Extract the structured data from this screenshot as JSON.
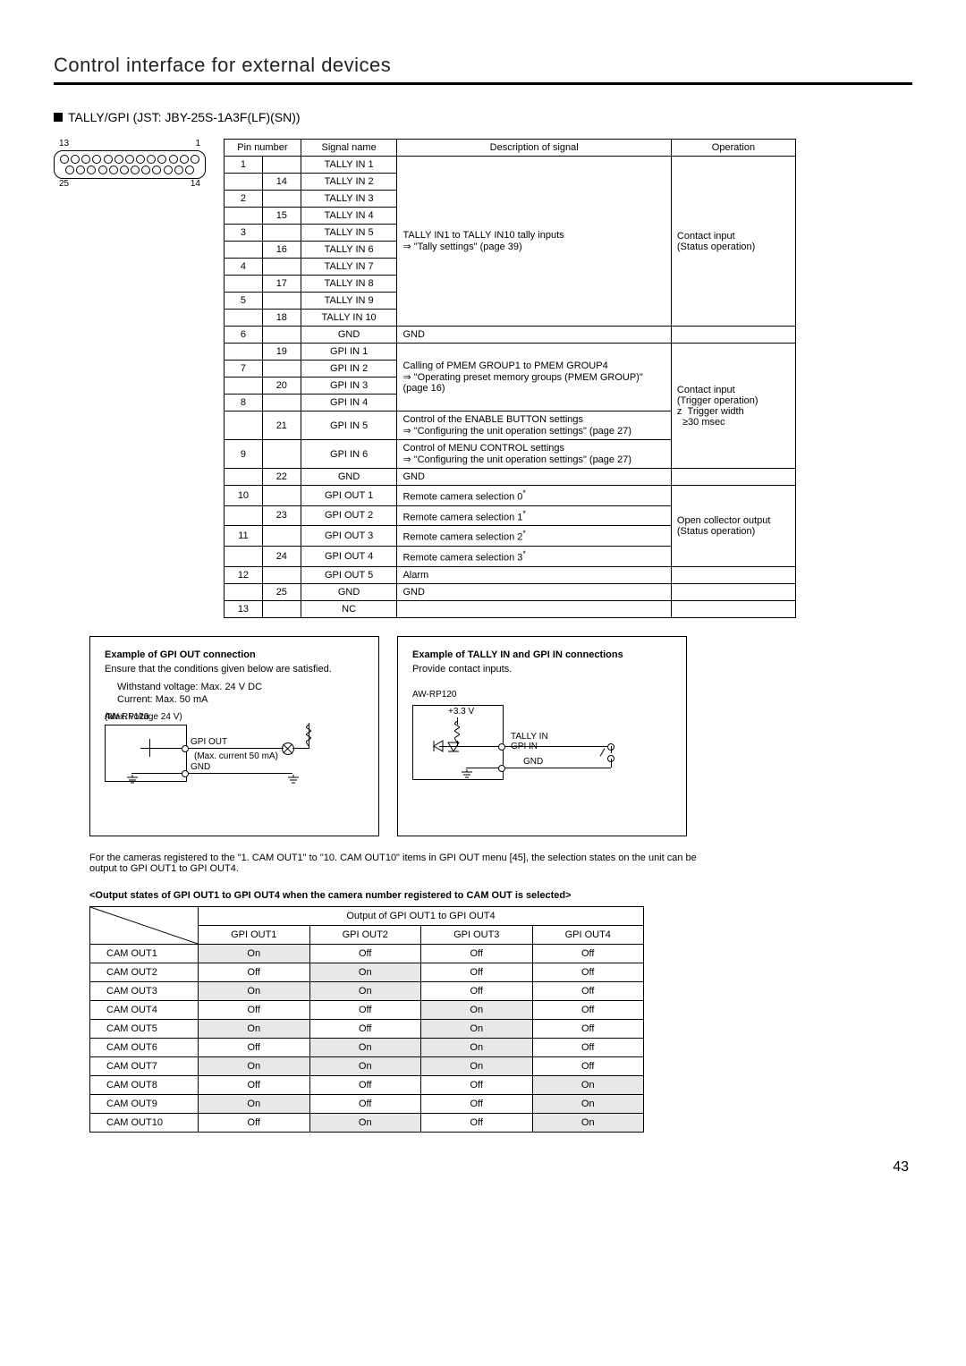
{
  "page": {
    "title": "Control interface for external devices",
    "section": "TALLY/GPI (JST: JBY-25S-1A3F(LF)(SN))",
    "number": "43"
  },
  "connector": {
    "top_left": "13",
    "top_right": "1",
    "bot_left": "25",
    "bot_right": "14",
    "top_pins": 13,
    "bot_pins": 12
  },
  "pin_table": {
    "head": {
      "pin": "Pin number",
      "signal": "Signal name",
      "desc": "Description of signal",
      "op": "Operation"
    },
    "tally_desc_l1": "TALLY IN1 to TALLY IN10 tally inputs",
    "tally_desc_l2": "\"Tally settings\" (page 39)",
    "tally_op_l1": "Contact input",
    "tally_op_l2": "(Status operation)",
    "gpiin_desc_a_l1": "Calling of PMEM GROUP1 to PMEM GROUP4",
    "gpiin_desc_a_l2": "\"Operating preset memory groups (PMEM GROUP)\" (page 16)",
    "gpiin_desc_b_l1": "Control of the ENABLE BUTTON settings",
    "gpiin_desc_b_l2": "\"Configuring the unit operation settings\" (page 27)",
    "gpiin_desc_c_l1": "Control of MENU CONTROL settings",
    "gpiin_desc_c_l2": "\"Configuring the unit operation settings\" (page 27)",
    "gpiin_op_l1": "Contact input",
    "gpiin_op_l2": "(Trigger operation)",
    "gpiin_op_l3": "Trigger width",
    "gpiin_op_l4": "30 msec",
    "gpiout_op_l1": "Open collector output",
    "gpiout_op_l2": "(Status operation)",
    "rows": [
      {
        "a": "1",
        "b": "",
        "sig": "TALLY IN 1"
      },
      {
        "a": "",
        "b": "14",
        "sig": "TALLY IN 2"
      },
      {
        "a": "2",
        "b": "",
        "sig": "TALLY IN 3"
      },
      {
        "a": "",
        "b": "15",
        "sig": "TALLY IN 4"
      },
      {
        "a": "3",
        "b": "",
        "sig": "TALLY IN 5"
      },
      {
        "a": "",
        "b": "16",
        "sig": "TALLY IN 6"
      },
      {
        "a": "4",
        "b": "",
        "sig": "TALLY IN 7"
      },
      {
        "a": "",
        "b": "17",
        "sig": "TALLY IN 8"
      },
      {
        "a": "5",
        "b": "",
        "sig": "TALLY IN 9"
      },
      {
        "a": "",
        "b": "18",
        "sig": "TALLY IN 10"
      },
      {
        "a": "6",
        "b": "",
        "sig": "GND",
        "desc": "GND"
      },
      {
        "a": "",
        "b": "19",
        "sig": "GPI IN 1"
      },
      {
        "a": "7",
        "b": "",
        "sig": "GPI IN 2"
      },
      {
        "a": "",
        "b": "20",
        "sig": "GPI IN 3"
      },
      {
        "a": "8",
        "b": "",
        "sig": "GPI IN 4"
      },
      {
        "a": "",
        "b": "21",
        "sig": "GPI IN 5"
      },
      {
        "a": "9",
        "b": "",
        "sig": "GPI IN 6"
      },
      {
        "a": "",
        "b": "22",
        "sig": "GND",
        "desc": "GND"
      },
      {
        "a": "10",
        "b": "",
        "sig": "GPI OUT 1",
        "desc": "Remote camera selection 0"
      },
      {
        "a": "",
        "b": "23",
        "sig": "GPI OUT 2",
        "desc": "Remote camera selection 1"
      },
      {
        "a": "11",
        "b": "",
        "sig": "GPI OUT 3",
        "desc": "Remote camera selection 2"
      },
      {
        "a": "",
        "b": "24",
        "sig": "GPI OUT 4",
        "desc": "Remote camera selection 3"
      },
      {
        "a": "12",
        "b": "",
        "sig": "GPI OUT 5",
        "desc": "Alarm"
      },
      {
        "a": "",
        "b": "25",
        "sig": "GND",
        "desc": "GND"
      },
      {
        "a": "13",
        "b": "",
        "sig": "NC",
        "desc": ""
      }
    ]
  },
  "example_out": {
    "title": "Example of GPI OUT connection",
    "sub": "Ensure that the conditions given below are satisfied.",
    "c1": "Withstand voltage: Max. 24 V DC",
    "c2": "Current: Max. 50 mA",
    "unit": "AW-RP120",
    "maxv": "(Max. voltage 24 V)",
    "maxc": "(Max. current 50 mA)",
    "gpiout": "GPI OUT",
    "gnd": "GND"
  },
  "example_in": {
    "title": "Example of TALLY IN and GPI IN connections",
    "sub": "Provide contact inputs.",
    "unit": "AW-RP120",
    "v": "+3.3 V",
    "sig": "TALLY IN\nGPI IN",
    "gnd": "GND"
  },
  "footnote": "For the cameras registered to the \"1. CAM OUT1\" to \"10. CAM OUT10\" items in GPI OUT menu [45], the selection states on the unit can be output to GPI OUT1 to GPI OUT4.",
  "out_caption": "<Output states of GPI OUT1 to GPI OUT4 when the camera number registered to CAM OUT is selected>",
  "out_table": {
    "group": "Output of GPI OUT1 to GPI OUT4",
    "cols": [
      "GPI OUT1",
      "GPI OUT2",
      "GPI OUT3",
      "GPI OUT4"
    ],
    "rows": [
      {
        "h": "CAM OUT1",
        "v": [
          "On",
          "Off",
          "Off",
          "Off"
        ]
      },
      {
        "h": "CAM OUT2",
        "v": [
          "Off",
          "On",
          "Off",
          "Off"
        ]
      },
      {
        "h": "CAM OUT3",
        "v": [
          "On",
          "On",
          "Off",
          "Off"
        ]
      },
      {
        "h": "CAM OUT4",
        "v": [
          "Off",
          "Off",
          "On",
          "Off"
        ]
      },
      {
        "h": "CAM OUT5",
        "v": [
          "On",
          "Off",
          "On",
          "Off"
        ]
      },
      {
        "h": "CAM OUT6",
        "v": [
          "Off",
          "On",
          "On",
          "Off"
        ]
      },
      {
        "h": "CAM OUT7",
        "v": [
          "On",
          "On",
          "On",
          "Off"
        ]
      },
      {
        "h": "CAM OUT8",
        "v": [
          "Off",
          "Off",
          "Off",
          "On"
        ]
      },
      {
        "h": "CAM OUT9",
        "v": [
          "On",
          "Off",
          "Off",
          "On"
        ]
      },
      {
        "h": "CAM OUT10",
        "v": [
          "Off",
          "On",
          "Off",
          "On"
        ]
      }
    ]
  },
  "colors": {
    "on_bg": "#e8e8e8"
  }
}
